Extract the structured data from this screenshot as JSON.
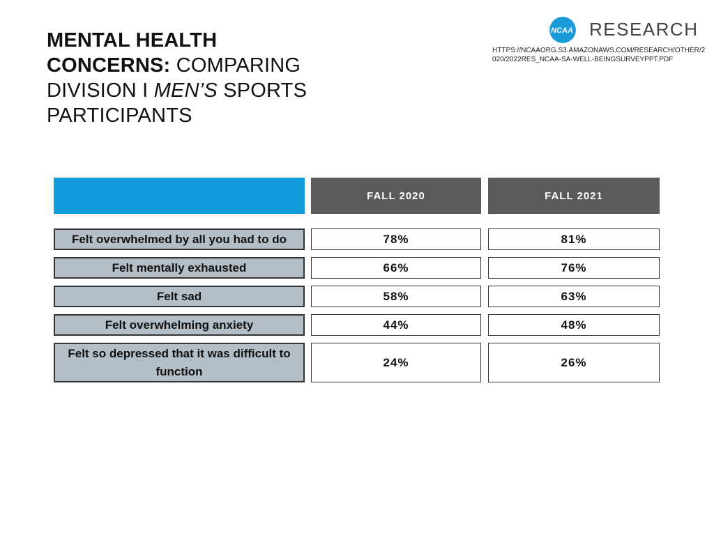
{
  "title": {
    "bold": "MENTAL HEALTH CONCERNS:",
    "part1": "COMPARING DIVISION I",
    "italic": "MEN’S",
    "part2": "SPORTS PARTICIPANTS"
  },
  "logo": {
    "mark": "NCAA",
    "text": "RESEARCH",
    "color": "#1a9ad9"
  },
  "source_url": "HTTPS://NCAAORG.S3.AMAZONAWS.COM/RESEARCH/OTHER/2020/2022RES_NCAA-SA-WELL-BEINGSURVEYPPT.PDF",
  "colors": {
    "accent_blue": "#139cdc",
    "header_gray": "#5a5a5a",
    "label_bg": "#b4bec6"
  },
  "table": {
    "columns": [
      "FALL 2020",
      "FALL 2021"
    ],
    "rows": [
      {
        "label": "Felt overwhelmed by all you had to do",
        "values": [
          "78%",
          "81%"
        ]
      },
      {
        "label": "Felt mentally exhausted",
        "values": [
          "66%",
          "76%"
        ]
      },
      {
        "label": "Felt sad",
        "values": [
          "58%",
          "63%"
        ]
      },
      {
        "label": "Felt overwhelming anxiety",
        "values": [
          "44%",
          "48%"
        ]
      },
      {
        "label": "Felt so depressed that it was difficult to function",
        "values": [
          "24%",
          "26%"
        ]
      }
    ]
  }
}
